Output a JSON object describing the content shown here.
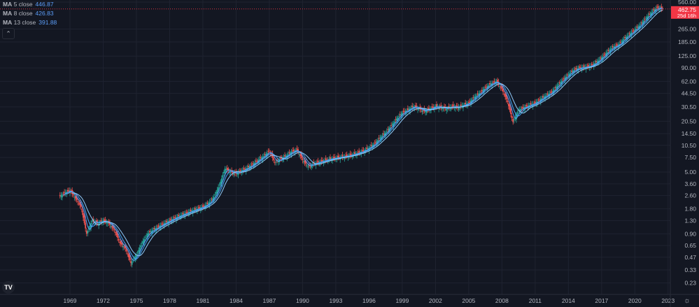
{
  "legend": [
    {
      "label_prefix": "MA",
      "label": "5 close",
      "value": "446.87",
      "color": "#5b9cf6"
    },
    {
      "label_prefix": "MA",
      "label": "8 close",
      "value": "426.83",
      "color": "#42a5f5"
    },
    {
      "label_prefix": "MA",
      "label": "13 close",
      "value": "391.88",
      "color": "#90caf9"
    }
  ],
  "collapse_icon": "chevron-up-icon",
  "logo_text": "TV",
  "settings_icon": "gear-icon",
  "colors": {
    "background": "#131722",
    "grid": "#1f2330",
    "up": "#26a69a",
    "down": "#ef5350",
    "badge": "#f23645",
    "axis_text": "#b2b5be"
  },
  "chart_data": {
    "type": "candlestick",
    "y_scale": "log",
    "ylim": [
      0.2,
      600
    ],
    "xlim": [
      1963,
      2024.5
    ],
    "grid": true,
    "y_ticks": [
      "560.00",
      "265.00",
      "185.00",
      "125.00",
      "90.00",
      "62.00",
      "44.50",
      "30.50",
      "20.50",
      "14.50",
      "10.50",
      "7.50",
      "5.00",
      "3.60",
      "2.60",
      "1.80",
      "1.30",
      "0.90",
      "0.65",
      "0.47",
      "0.33",
      "0.23"
    ],
    "x_ticks": [
      "1969",
      "1972",
      "1975",
      "1978",
      "1981",
      "1984",
      "1987",
      "1990",
      "1993",
      "1996",
      "1999",
      "2002",
      "2005",
      "2008",
      "2011",
      "2014",
      "2017",
      "2020",
      "2023"
    ],
    "last_price": {
      "value": "462.75",
      "countdown": "25d 16h"
    },
    "x": [
      1968.0,
      1968.5,
      1969.0,
      1969.5,
      1970.0,
      1970.5,
      1971.0,
      1971.5,
      1972.0,
      1972.5,
      1973.0,
      1973.5,
      1974.0,
      1974.5,
      1975.0,
      1975.5,
      1976.0,
      1976.5,
      1977.0,
      1977.5,
      1978.0,
      1978.5,
      1979.0,
      1979.5,
      1980.0,
      1980.5,
      1981.0,
      1981.5,
      1982.0,
      1982.5,
      1983.0,
      1983.5,
      1984.0,
      1984.5,
      1985.0,
      1985.5,
      1986.0,
      1986.5,
      1987.0,
      1987.5,
      1988.0,
      1988.5,
      1989.0,
      1989.5,
      1990.0,
      1990.5,
      1991.0,
      1991.5,
      1992.0,
      1992.5,
      1993.0,
      1993.5,
      1994.0,
      1994.5,
      1995.0,
      1995.5,
      1996.0,
      1996.5,
      1997.0,
      1997.5,
      1998.0,
      1998.5,
      1999.0,
      1999.5,
      2000.0,
      2000.5,
      2001.0,
      2001.5,
      2002.0,
      2002.5,
      2003.0,
      2003.5,
      2004.0,
      2004.5,
      2005.0,
      2005.5,
      2006.0,
      2006.5,
      2007.0,
      2007.5,
      2008.0,
      2008.5,
      2009.0,
      2009.5,
      2010.0,
      2010.5,
      2011.0,
      2011.5,
      2012.0,
      2012.5,
      2013.0,
      2013.5,
      2014.0,
      2014.5,
      2015.0,
      2015.5,
      2016.0,
      2016.5,
      2017.0,
      2017.5,
      2018.0,
      2018.5,
      2019.0,
      2019.5,
      2020.0,
      2020.5,
      2021.0,
      2021.5,
      2022.0,
      2022.5
    ],
    "close": [
      2.5,
      2.8,
      3.0,
      2.4,
      1.9,
      0.9,
      1.3,
      1.2,
      1.3,
      1.2,
      1.0,
      0.7,
      0.6,
      0.4,
      0.5,
      0.7,
      0.9,
      1.0,
      1.1,
      1.2,
      1.3,
      1.4,
      1.5,
      1.6,
      1.7,
      1.8,
      1.9,
      2.1,
      2.5,
      3.5,
      5.5,
      5.0,
      4.8,
      5.2,
      5.6,
      6.2,
      7.0,
      7.8,
      9.0,
      6.5,
      7.2,
      7.8,
      8.8,
      9.2,
      7.0,
      5.8,
      6.3,
      6.6,
      6.9,
      7.2,
      7.4,
      7.6,
      7.8,
      8.1,
      8.5,
      9.0,
      9.8,
      11,
      13,
      15,
      18,
      22,
      26,
      28,
      31,
      29,
      27,
      29,
      31,
      30,
      29,
      31,
      30,
      32,
      34,
      40,
      45,
      52,
      58,
      62,
      50,
      35,
      20,
      28,
      30,
      32,
      34,
      38,
      42,
      46,
      55,
      65,
      75,
      85,
      90,
      92,
      95,
      105,
      120,
      140,
      160,
      170,
      200,
      230,
      260,
      300,
      360,
      420,
      480,
      462.75
    ],
    "series": [
      {
        "name": "MA 5 close",
        "period": 5,
        "color": "#5b9cf6"
      },
      {
        "name": "MA 8 close",
        "period": 8,
        "color": "#42a5f5"
      },
      {
        "name": "MA 13 close",
        "period": 13,
        "color": "#90caf9"
      }
    ]
  }
}
